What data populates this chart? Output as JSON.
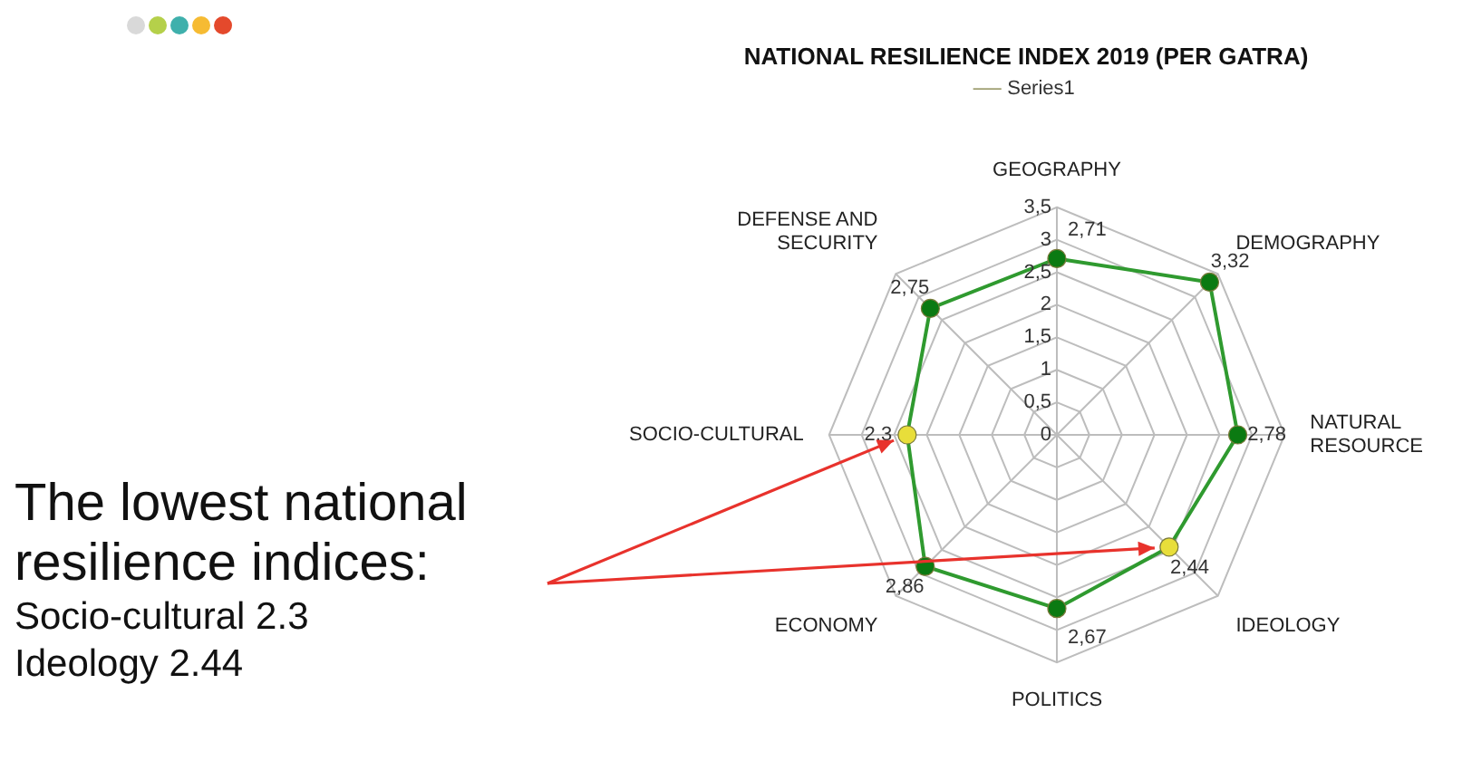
{
  "chart_data": {
    "type": "radar",
    "title": "NATIONAL RESILIENCE INDEX 2019 (PER GATRA)",
    "categories": [
      "GEOGRAPHY",
      "DEMOGRAPHY",
      "NATURAL RESOURCE",
      "IDEOLOGY",
      "POLITICS",
      "ECONOMY",
      "SOCIO-CULTURAL",
      "DEFENSE AND SECURITY"
    ],
    "series": [
      {
        "name": "Series1",
        "color": "#2f9a2f",
        "values": [
          2.71,
          3.32,
          2.78,
          2.44,
          2.67,
          2.86,
          2.3,
          2.75
        ],
        "colors": [
          "#0b7a12",
          "#0b7a12",
          "#0b7a12",
          "#e8de3a",
          "#0b7a12",
          "#0b7a12",
          "#e8de3a",
          "#0b7a12"
        ],
        "value_labels": [
          "2,71",
          "3,32",
          "2,78",
          "2,44",
          "2,67",
          "2,86",
          "2,3",
          "2,75"
        ]
      }
    ],
    "ylim": [
      0,
      3.5
    ],
    "yticks": [
      0,
      {
        "value": 0.5,
        "label": "0,5"
      },
      1,
      {
        "value": 1.5,
        "label": "1,5"
      },
      2,
      {
        "value": 2.5,
        "label": "2,5"
      },
      3,
      {
        "value": 3.5,
        "label": "3,5"
      }
    ],
    "grid": true,
    "legend": "top",
    "marker": "circle",
    "annotations": [
      "The lowest national resilience indices:",
      {
        "text": "Socio-cultural 2.3",
        "x": "SOCIO-CULTURAL"
      },
      {
        "text": "Ideology 2.44",
        "x": "IDEOLOGY"
      }
    ]
  }
}
